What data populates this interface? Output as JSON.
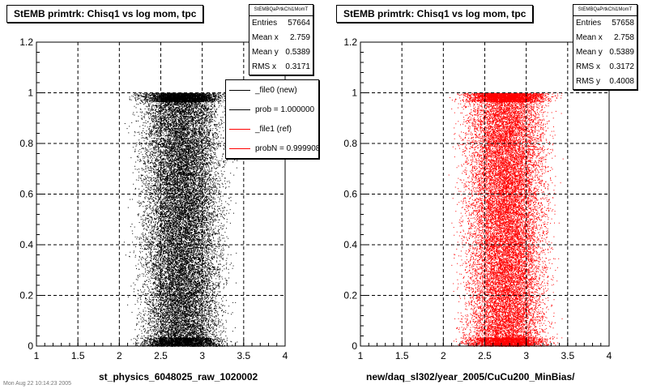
{
  "chart_data": [
    {
      "type": "scatter",
      "title": "StEMB primtrk: Chisq1 vs log mom, tpc",
      "xlabel": "st_physics_6048025_raw_1020002",
      "ylabel": "",
      "xlim": [
        1,
        4
      ],
      "ylim": [
        0,
        1.2
      ],
      "x_ticks": [
        "1",
        "1.5",
        "2",
        "2.5",
        "3",
        "3.5",
        "4"
      ],
      "y_ticks": [
        "0",
        "0.2",
        "0.4",
        "0.6",
        "0.8",
        "1",
        "1.2"
      ],
      "grid": true,
      "marker_color": "#000000",
      "x_range_populated": [
        2.0,
        3.5
      ],
      "y_range_populated": [
        0.0,
        1.0
      ],
      "stats": {
        "name": "StEMBQaPrtkChi1MomT",
        "rows": [
          {
            "label": "Entries",
            "value": "57664"
          },
          {
            "label": "Mean x",
            "value": "2.759"
          },
          {
            "label": "Mean y",
            "value": "0.5389"
          },
          {
            "label": "RMS x",
            "value": "0.3171"
          }
        ]
      },
      "legend": {
        "placement": "top-right",
        "entries": [
          {
            "label": "_file0 (new)",
            "color": "#000000"
          },
          {
            "label": "prob = 1.000000",
            "color": "#000000"
          },
          {
            "label": "_file1 (ref)",
            "color": "#ff0000"
          },
          {
            "label": "probN = 0.999908",
            "color": "#ff0000"
          }
        ]
      }
    },
    {
      "type": "scatter",
      "title": "StEMB primtrk: Chisq1 vs log mom, tpc",
      "xlabel": "new/daq_sl302/year_2005/CuCu200_MinBias/",
      "ylabel": "",
      "xlim": [
        1,
        4
      ],
      "ylim": [
        0,
        1.2
      ],
      "x_ticks": [
        "1",
        "1.5",
        "2",
        "2.5",
        "3",
        "3.5",
        "4"
      ],
      "y_ticks": [
        "0",
        "0.2",
        "0.4",
        "0.6",
        "0.8",
        "1",
        "1.2"
      ],
      "grid": true,
      "marker_color": "#ff0000",
      "x_range_populated": [
        2.0,
        3.5
      ],
      "y_range_populated": [
        0.0,
        1.0
      ],
      "stats": {
        "name": "StEMBQaPrtkChi1MomT",
        "rows": [
          {
            "label": "Entries",
            "value": "57658"
          },
          {
            "label": "Mean x",
            "value": "2.758"
          },
          {
            "label": "Mean y",
            "value": "0.5389"
          },
          {
            "label": "RMS x",
            "value": "0.3172"
          },
          {
            "label": "RMS y",
            "value": "0.4008"
          }
        ]
      }
    }
  ],
  "footer_text": "Mon Aug 22 10:14:23 2005"
}
